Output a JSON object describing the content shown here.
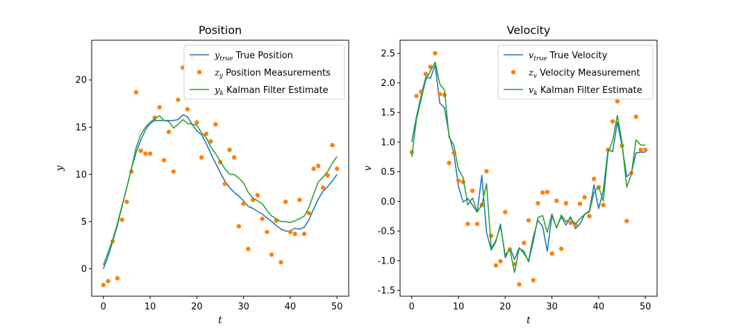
{
  "chart_data": [
    {
      "type": "line",
      "title": "Position",
      "xlabel": "t",
      "ylabel": "y",
      "xlim": [
        -2.5,
        52.5
      ],
      "ylim": [
        -2.9,
        24.2
      ],
      "xticks": [
        0,
        10,
        20,
        30,
        40,
        50
      ],
      "yticks": [
        0,
        5,
        10,
        15,
        20
      ],
      "legend_position": "upper-right",
      "grid": false,
      "series": [
        {
          "name": "True Position",
          "symbol": "y",
          "sub": "true",
          "kind": "line",
          "color": "#1f77b4",
          "x": [
            0,
            1,
            2,
            3,
            4,
            5,
            6,
            7,
            8,
            9,
            10,
            11,
            12,
            13,
            14,
            15,
            16,
            17,
            18,
            19,
            20,
            21,
            22,
            23,
            24,
            25,
            26,
            27,
            28,
            29,
            30,
            31,
            32,
            33,
            34,
            35,
            36,
            37,
            38,
            39,
            40,
            41,
            42,
            43,
            44,
            45,
            46,
            47,
            48,
            49,
            50
          ],
          "y": [
            0,
            1.3,
            2.9,
            4.6,
            6.6,
            8.6,
            10.6,
            12.3,
            13.6,
            14.7,
            15.4,
            15.7,
            15.7,
            15.7,
            15.7,
            15.7,
            15.8,
            16.3,
            16.1,
            15.3,
            14.6,
            14.2,
            13.3,
            12.2,
            11.2,
            10.2,
            9.3,
            8.6,
            8.1,
            7.7,
            7.2,
            6.6,
            6.4,
            6.1,
            5.8,
            5.4,
            5.0,
            4.6,
            4.2,
            4.0,
            4.0,
            4.3,
            4.2,
            4.4,
            5.2,
            6.3,
            7.4,
            8.2,
            8.7,
            9.3,
            10.0
          ]
        },
        {
          "name": "Position Measurements",
          "symbol": "z",
          "sub": "y",
          "kind": "scatter",
          "color": "#ff7f0e",
          "x": [
            0,
            1,
            2,
            3,
            4,
            5,
            6,
            7,
            8,
            9,
            10,
            11,
            12,
            13,
            14,
            15,
            16,
            17,
            18,
            19,
            20,
            21,
            22,
            23,
            24,
            25,
            26,
            27,
            28,
            29,
            30,
            31,
            32,
            33,
            34,
            35,
            36,
            37,
            38,
            39,
            40,
            41,
            42,
            43,
            44,
            45,
            46,
            47,
            48,
            49,
            50
          ],
          "y": [
            -1.7,
            -1.3,
            2.9,
            -1.0,
            5.2,
            7.1,
            10.3,
            18.7,
            12.5,
            12.2,
            12.2,
            16.0,
            17.1,
            11.5,
            14.5,
            10.3,
            17.9,
            21.3,
            16.9,
            22.4,
            15.5,
            11.8,
            14.3,
            13.5,
            15.3,
            11.3,
            9.0,
            12.6,
            11.8,
            4.5,
            6.9,
            2.1,
            7.3,
            7.8,
            5.3,
            3.9,
            1.5,
            5.1,
            0.7,
            7.1,
            3.9,
            3.7,
            7.3,
            3.7,
            5.9,
            10.6,
            10.9,
            8.6,
            9.9,
            13.1,
            10.6
          ]
        },
        {
          "name": "Kalman Filter Estimate",
          "symbol": "y",
          "sub": "k",
          "kind": "line",
          "color": "#2ca02c",
          "x": [
            0,
            1,
            2,
            3,
            4,
            5,
            6,
            7,
            8,
            9,
            10,
            11,
            12,
            13,
            14,
            15,
            16,
            17,
            18,
            19,
            20,
            21,
            22,
            23,
            24,
            25,
            26,
            27,
            28,
            29,
            30,
            31,
            32,
            33,
            34,
            35,
            36,
            37,
            38,
            39,
            40,
            41,
            42,
            43,
            44,
            45,
            46,
            47,
            48,
            49,
            50
          ],
          "y": [
            0.4,
            1.7,
            3.1,
            4.8,
            6.7,
            8.6,
            10.6,
            12.8,
            14.2,
            15.0,
            15.5,
            15.9,
            16.2,
            15.7,
            15.6,
            14.9,
            15.3,
            15.8,
            15.4,
            15.3,
            15.2,
            14.4,
            13.9,
            12.9,
            12.2,
            11.4,
            10.6,
            10.0,
            10.0,
            9.6,
            9.1,
            8.1,
            7.5,
            7.2,
            6.9,
            6.2,
            5.6,
            5.3,
            5.0,
            5.0,
            4.9,
            5.1,
            5.3,
            5.6,
            6.5,
            7.9,
            9.2,
            9.7,
            10.3,
            11.2,
            11.9
          ]
        }
      ]
    },
    {
      "type": "line",
      "title": "Velocity",
      "xlabel": "t",
      "ylabel": "v",
      "xlim": [
        -2.5,
        52.5
      ],
      "ylim": [
        -1.6,
        2.72
      ],
      "xticks": [
        0,
        10,
        20,
        30,
        40,
        50
      ],
      "yticks": [
        -1.5,
        -1.0,
        -0.5,
        0.0,
        0.5,
        1.0,
        1.5,
        2.0,
        2.5
      ],
      "legend_position": "upper-right",
      "grid": false,
      "series": [
        {
          "name": "True Velocity",
          "symbol": "v",
          "sub": "true",
          "kind": "line",
          "color": "#1f77b4",
          "x": [
            0,
            1,
            2,
            3,
            4,
            5,
            6,
            7,
            8,
            9,
            10,
            11,
            12,
            13,
            14,
            15,
            16,
            17,
            18,
            19,
            20,
            21,
            22,
            23,
            24,
            25,
            26,
            27,
            28,
            29,
            30,
            31,
            32,
            33,
            34,
            35,
            36,
            37,
            38,
            39,
            40,
            41,
            42,
            43,
            44,
            45,
            46,
            47,
            48,
            49,
            50
          ],
          "y": [
            1.0,
            1.42,
            1.78,
            2.1,
            2.08,
            2.3,
            1.66,
            1.58,
            1.12,
            0.81,
            0.25,
            -0.01,
            0.05,
            -0.06,
            -0.18,
            0.44,
            -0.52,
            -0.82,
            -0.68,
            -0.38,
            -0.95,
            -0.78,
            -0.98,
            -0.78,
            -0.88,
            -1.0,
            -0.6,
            -0.32,
            -0.42,
            -0.84,
            -0.24,
            -0.44,
            -0.26,
            -0.4,
            -0.26,
            -0.46,
            -0.38,
            -0.22,
            -0.16,
            0.28,
            -0.12,
            0.18,
            0.88,
            0.84,
            1.34,
            0.94,
            0.42,
            0.48,
            0.82,
            0.83,
            0.83
          ]
        },
        {
          "name": "Velocity Measurement",
          "symbol": "z",
          "sub": "v",
          "kind": "scatter",
          "color": "#ff7f0e",
          "x": [
            0,
            1,
            2,
            3,
            4,
            5,
            6,
            7,
            8,
            9,
            10,
            11,
            12,
            13,
            14,
            15,
            16,
            17,
            18,
            19,
            20,
            21,
            22,
            23,
            24,
            25,
            26,
            27,
            28,
            29,
            30,
            31,
            32,
            33,
            34,
            35,
            36,
            37,
            38,
            39,
            40,
            41,
            42,
            43,
            44,
            45,
            46,
            47,
            48,
            49,
            50
          ],
          "y": [
            0.83,
            1.78,
            1.85,
            2.15,
            2.27,
            2.5,
            1.81,
            1.8,
            0.65,
            0.82,
            0.35,
            0.33,
            -0.38,
            0.18,
            -0.38,
            -0.06,
            0.51,
            -0.58,
            -1.08,
            -1.01,
            -0.18,
            -0.81,
            -1.06,
            -1.4,
            -0.7,
            -0.32,
            -1.33,
            -0.03,
            0.15,
            0.16,
            -0.88,
            0.01,
            -0.8,
            -0.03,
            -0.36,
            -0.39,
            -0.04,
            0.07,
            -0.25,
            0.38,
            0.24,
            -0.06,
            0.87,
            1.35,
            1.69,
            0.94,
            -0.33,
            0.48,
            1.43,
            0.87,
            0.87
          ]
        },
        {
          "name": "Kalman Filter Estimate",
          "symbol": "v",
          "sub": "k",
          "kind": "line",
          "color": "#2ca02c",
          "x": [
            0,
            1,
            2,
            3,
            4,
            5,
            6,
            7,
            8,
            9,
            10,
            11,
            12,
            13,
            14,
            15,
            16,
            17,
            18,
            19,
            20,
            21,
            22,
            23,
            24,
            25,
            26,
            27,
            28,
            29,
            30,
            31,
            32,
            33,
            34,
            35,
            36,
            37,
            38,
            39,
            40,
            41,
            42,
            43,
            44,
            45,
            46,
            47,
            48,
            49,
            50
          ],
          "y": [
            0.75,
            1.38,
            1.72,
            2.05,
            2.2,
            2.35,
            1.98,
            1.88,
            1.08,
            0.95,
            0.54,
            0.4,
            -0.06,
            0.06,
            -0.18,
            -0.06,
            0.3,
            -0.79,
            -0.66,
            -0.42,
            -0.9,
            -0.81,
            -1.2,
            -0.79,
            -0.84,
            -1.02,
            -0.68,
            -0.27,
            -0.24,
            -0.52,
            -0.21,
            -0.45,
            -0.23,
            -0.34,
            -0.29,
            -0.38,
            -0.29,
            -0.22,
            -0.18,
            0.15,
            0.24,
            0.01,
            0.82,
            1.03,
            1.45,
            1.0,
            0.24,
            0.46,
            1.04,
            0.95,
            0.95
          ]
        }
      ]
    }
  ]
}
